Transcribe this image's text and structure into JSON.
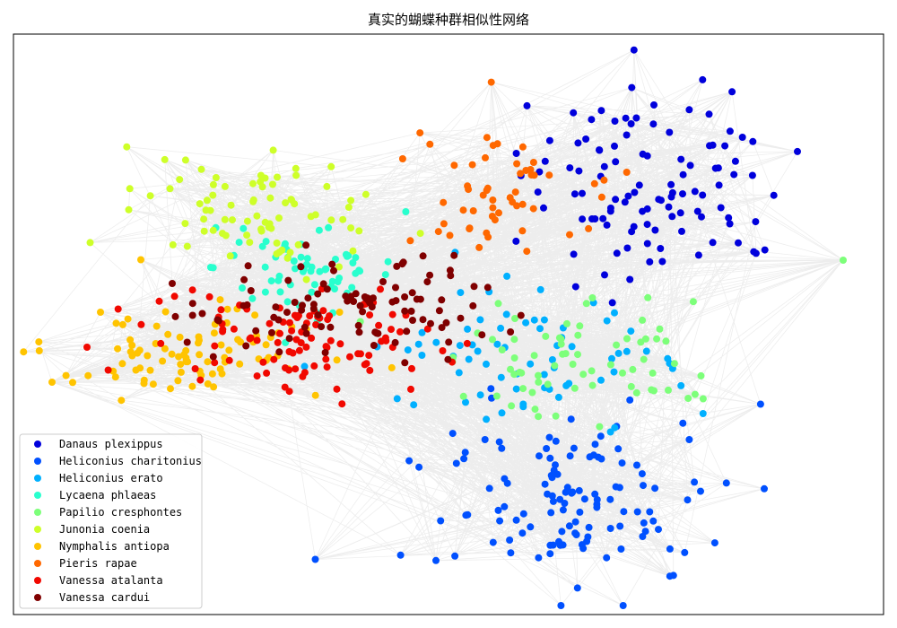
{
  "chart_data": {
    "type": "scatter",
    "title": "真实的蝴蝶种群相似性网络",
    "grid": false,
    "legend_position": "lower-left",
    "axes_visible": false,
    "series": [
      {
        "name": "Danaus plexippus",
        "color": "#0000dc",
        "node_count": 110
      },
      {
        "name": "Heliconius charitonius",
        "color": "#0050ff",
        "node_count": 125
      },
      {
        "name": "Heliconius erato",
        "color": "#00b0ff",
        "node_count": 70
      },
      {
        "name": "Lycaena phlaeas",
        "color": "#29ffce",
        "node_count": 65
      },
      {
        "name": "Papilio cresphontes",
        "color": "#7dff7a",
        "node_count": 70
      },
      {
        "name": "Junonia coenia",
        "color": "#ceff29",
        "node_count": 80
      },
      {
        "name": "Nymphalis antiopa",
        "color": "#ffc400",
        "node_count": 90
      },
      {
        "name": "Pieris rapae",
        "color": "#ff6800",
        "node_count": 55
      },
      {
        "name": "Vanessa atalanta",
        "color": "#f10800",
        "node_count": 100
      },
      {
        "name": "Vanessa cardui",
        "color": "#800000",
        "node_count": 100
      }
    ]
  }
}
